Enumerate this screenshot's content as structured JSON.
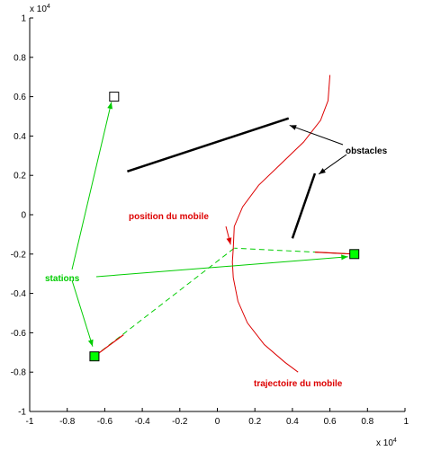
{
  "chart_data": {
    "type": "scatter",
    "title": "",
    "xlabel": "",
    "ylabel": "",
    "xlim": [
      -1,
      1
    ],
    "ylim": [
      -1,
      1
    ],
    "xticks": [
      "-1",
      "-0.8",
      "-0.6",
      "-0.4",
      "-0.2",
      "0",
      "0.2",
      "0.4",
      "0.6",
      "0.8",
      "1"
    ],
    "yticks": [
      "-1",
      "-0.8",
      "-0.6",
      "-0.4",
      "-0.2",
      "0",
      "0.2",
      "0.4",
      "0.6",
      "0.8",
      "1"
    ],
    "x_multiplier": "x 10",
    "x_exponent": "4",
    "y_multiplier": "x 10",
    "y_exponent": "4",
    "grid": false,
    "colors": {
      "stations": "#00cc00",
      "mobile": "#dd0000",
      "obstacles": "#000000",
      "station_fill": "#00ff00"
    },
    "stations": [
      {
        "x": -0.55,
        "y": 0.6,
        "filled": false
      },
      {
        "x": -0.655,
        "y": -0.72,
        "filled": true
      },
      {
        "x": 0.73,
        "y": -0.2,
        "filled": true
      }
    ],
    "mobile_position": {
      "x": 0.09,
      "y": -0.17
    },
    "obstacles": [
      {
        "x1": -0.48,
        "y1": 0.22,
        "x2": 0.38,
        "y2": 0.49
      },
      {
        "x1": 0.4,
        "y1": -0.12,
        "x2": 0.52,
        "y2": 0.21
      }
    ],
    "trajectory": [
      [
        0.6,
        0.71
      ],
      [
        0.59,
        0.58
      ],
      [
        0.55,
        0.48
      ],
      [
        0.46,
        0.37
      ],
      [
        0.34,
        0.26
      ],
      [
        0.22,
        0.15
      ],
      [
        0.135,
        0.04
      ],
      [
        0.09,
        -0.06
      ],
      [
        0.085,
        -0.17
      ],
      [
        0.08,
        -0.24
      ],
      [
        0.085,
        -0.32
      ],
      [
        0.11,
        -0.44
      ],
      [
        0.16,
        -0.55
      ],
      [
        0.25,
        -0.66
      ],
      [
        0.36,
        -0.75
      ],
      [
        0.43,
        -0.8
      ]
    ],
    "annotations": {
      "obstacles": "obstacles",
      "stations": "stations",
      "position": "position du mobile",
      "trajectory": "trajectoire du mobile"
    }
  }
}
